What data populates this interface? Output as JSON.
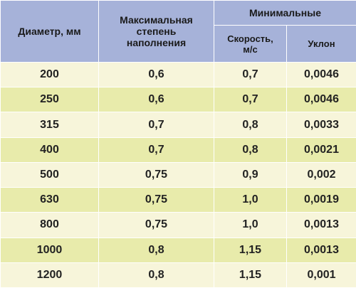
{
  "headers": {
    "diameter": "Диаметр, мм",
    "max_fill_line1": "Максимальная",
    "max_fill_line2": "степень",
    "max_fill_line3": "наполнения",
    "minimal": "Минимальные",
    "speed_line1": "Скорость,",
    "speed_line2": "м/с",
    "slope": "Уклон"
  },
  "rows": [
    {
      "diameter": "200",
      "fill": "0,6",
      "speed": "0,7",
      "slope": "0,0046"
    },
    {
      "diameter": "250",
      "fill": "0,6",
      "speed": "0,7",
      "slope": "0,0046"
    },
    {
      "diameter": "315",
      "fill": "0,7",
      "speed": "0,8",
      "slope": "0,0033"
    },
    {
      "diameter": "400",
      "fill": "0,7",
      "speed": "0,8",
      "slope": "0,0021"
    },
    {
      "diameter": "500",
      "fill": "0,75",
      "speed": "0,9",
      "slope": "0,002"
    },
    {
      "diameter": "630",
      "fill": "0,75",
      "speed": "1,0",
      "slope": "0,0019"
    },
    {
      "diameter": "800",
      "fill": "0,75",
      "speed": "1,0",
      "slope": "0,0013"
    },
    {
      "diameter": "1000",
      "fill": "0,8",
      "speed": "1,15",
      "slope": "0,0013"
    },
    {
      "diameter": "1200",
      "fill": "0,8",
      "speed": "1,15",
      "slope": "0,001"
    }
  ],
  "colors": {
    "header_bg": "#a6b2d9",
    "row_light": "#f7f5da",
    "row_dark": "#e8ebab"
  }
}
